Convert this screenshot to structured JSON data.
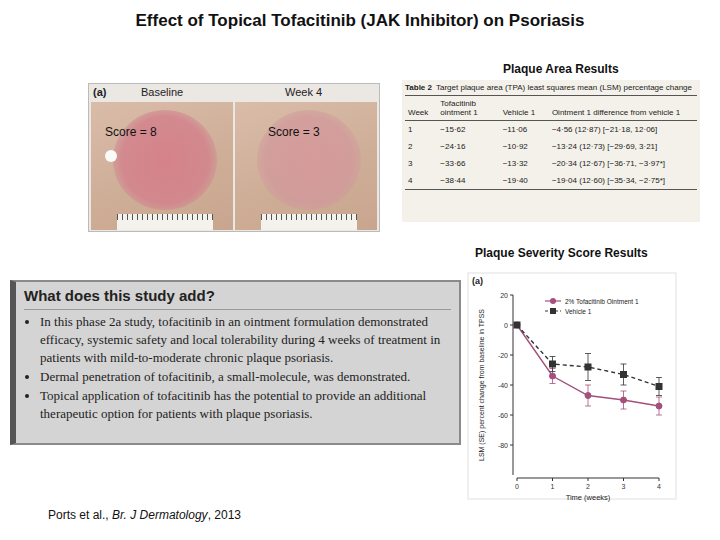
{
  "title": "Effect of Topical Tofacitinib (JAK Inhibitor) on Psoriasis",
  "plaque_area": {
    "heading": "Plaque Area Results",
    "photos": {
      "panel": "(a)",
      "baseline": {
        "label": "Baseline",
        "score": "Score = 8"
      },
      "week4": {
        "label": "Week 4",
        "score": "Score = 3"
      }
    },
    "table": {
      "caption": "Table 2",
      "caption_text": "Target plaque area (TPA) least squares mean (LSM) percentage change",
      "columns": [
        "Week",
        "Tofacitinib ointment 1",
        "Vehicle 1",
        "Ointment 1 difference from vehicle 1"
      ],
      "rows": [
        {
          "week": 1,
          "ointment": "−15·62",
          "vehicle": "−11·06",
          "difference": "−4·56 (12·87) [−21·18, 12·06]"
        },
        {
          "week": 2,
          "ointment": "−24·16",
          "vehicle": "−10·92",
          "difference": "−13·24 (12·73) [−29·69, 3·21]"
        },
        {
          "week": 3,
          "ointment": "−33·66",
          "vehicle": "−13·32",
          "difference": "−20·34 (12·67) [−36·71, −3·97*]"
        },
        {
          "week": 4,
          "ointment": "−38·44",
          "vehicle": "−19·40",
          "difference": "−19·04 (12·60) [−35·34, −2·75*]"
        }
      ]
    }
  },
  "severity": {
    "heading": "Plaque Severity Score Results"
  },
  "summary": {
    "heading": "What does this study add?",
    "bullets": [
      "In this phase 2a study, tofacitinib in an ointment formulation demonstrated efficacy, systemic safety and local tolerability during 4 weeks of treatment in patients with mild-to-moderate chronic plaque psoriasis.",
      "Dermal penetration of tofacitinib, a small-molecule, was demonstrated.",
      "Topical application of tofacitinib has the potential to provide an additional therapeutic option for patients with plaque psoriasis."
    ]
  },
  "citation": {
    "authors": "Ports et al., ",
    "journal": "Br. J Dermatology",
    "year": ", 2013"
  },
  "chart_data": {
    "type": "line",
    "panel": "(a)",
    "x_label": "Time (weeks)",
    "y_label": "LSM (SE) percent change from baseline in TPSS",
    "x": [
      0,
      1,
      2,
      3,
      4
    ],
    "series": [
      {
        "name": "2% Tofacitinib Ointment 1",
        "color": "#a3507c",
        "marker": "circle",
        "line_style": "solid",
        "values": [
          0,
          -34,
          -47,
          -50,
          -54
        ],
        "errors": [
          null,
          5,
          7,
          6,
          6
        ]
      },
      {
        "name": "Vehicle 1",
        "color": "#333333",
        "marker": "square",
        "line_style": "dashed",
        "values": [
          0,
          -26,
          -28,
          -33,
          -41
        ],
        "errors": [
          null,
          5,
          9,
          7,
          6
        ]
      }
    ],
    "xlim": [
      0,
      4
    ],
    "xticks": [
      0,
      1,
      2,
      3,
      4
    ],
    "ylim": [
      -100,
      20
    ],
    "yticks": [
      20,
      0,
      -20,
      -40,
      -60,
      -80
    ],
    "grid": false,
    "legend": "top-right"
  }
}
